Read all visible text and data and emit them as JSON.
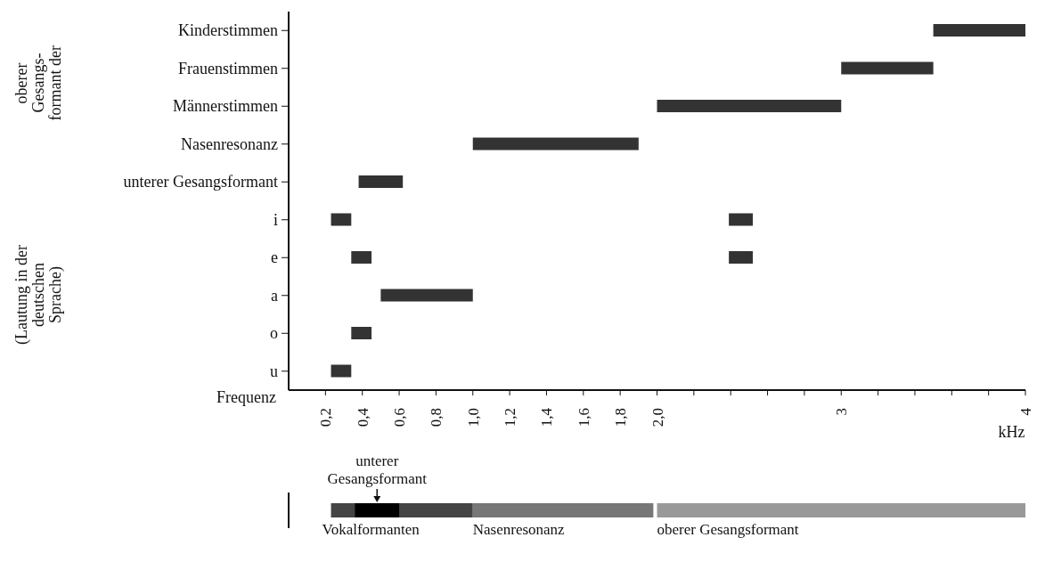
{
  "chart_data": [
    {
      "type": "bar",
      "orientation": "horizontal",
      "xlabel": "Frequenz",
      "categories": [
        "Kinderstimmen",
        "Frauenstimmen",
        "Männerstimmen",
        "Nasenresonanz",
        "unterer Gesangsformant",
        "i",
        "e",
        "a",
        "o",
        "u"
      ],
      "series": [
        {
          "color": "#333333",
          "base": [
            3.5,
            3.0,
            2.0,
            1.0,
            0.38,
            0.23,
            0.34,
            0.5,
            0.34,
            0.23
          ],
          "values": [
            0.5,
            0.5,
            1.0,
            0.9,
            0.24,
            0.11,
            0.11,
            0.5,
            0.11,
            0.11
          ]
        },
        {
          "color": "#333333",
          "base": [
            null,
            null,
            null,
            null,
            null,
            2.39,
            2.39,
            null,
            null,
            null
          ],
          "values": [
            null,
            null,
            null,
            null,
            null,
            0.13,
            0.13,
            null,
            null,
            null
          ]
        }
      ],
      "xlim": [
        0,
        4
      ],
      "xticks": [
        {
          "value": 0.2,
          "label": "0,2"
        },
        {
          "value": 0.4,
          "label": "0,4"
        },
        {
          "value": 0.6,
          "label": "0,6"
        },
        {
          "value": 0.8,
          "label": "0,8"
        },
        {
          "value": 1.0,
          "label": "1,0"
        },
        {
          "value": 1.2,
          "label": "1,2"
        },
        {
          "value": 1.4,
          "label": "1,4"
        },
        {
          "value": 1.6,
          "label": "1,6"
        },
        {
          "value": 1.8,
          "label": "1,8"
        },
        {
          "value": 2.0,
          "label": "2,0"
        },
        {
          "value": 2.2,
          "label": null
        },
        {
          "value": 2.4,
          "label": null
        },
        {
          "value": 2.6,
          "label": null
        },
        {
          "value": 2.8,
          "label": null
        },
        3,
        {
          "value": 3.2,
          "label": null
        },
        {
          "value": 3.4,
          "label": null
        },
        {
          "value": 3.6,
          "label": null
        },
        {
          "value": 3.8,
          "label": null
        },
        4
      ],
      "annotations": [
        "oberer\nGesangs-\nformant der",
        "(Lautung in der\ndeutschen\nSprache)",
        "kHz"
      ]
    },
    {
      "type": "bar",
      "orientation": "horizontal",
      "categories": [
        null
      ],
      "tick_labels": false,
      "series": [
        {
          "name": "Vokalformanten",
          "color": "#444444",
          "base": [
            0.23
          ],
          "values": [
            0.77
          ]
        },
        {
          "name": "Nasenresonanz",
          "color": "#777777",
          "base": [
            1.0
          ],
          "values": [
            0.98
          ]
        },
        {
          "name": "oberer Gesangsformant",
          "color": "#999999",
          "base": [
            2.0
          ],
          "values": [
            2.0
          ]
        },
        {
          "name": "unterer Gesangsformant",
          "color": "#000000",
          "base": [
            0.36
          ],
          "values": [
            0.24
          ]
        }
      ],
      "xlim": [
        0,
        4
      ]
    }
  ]
}
